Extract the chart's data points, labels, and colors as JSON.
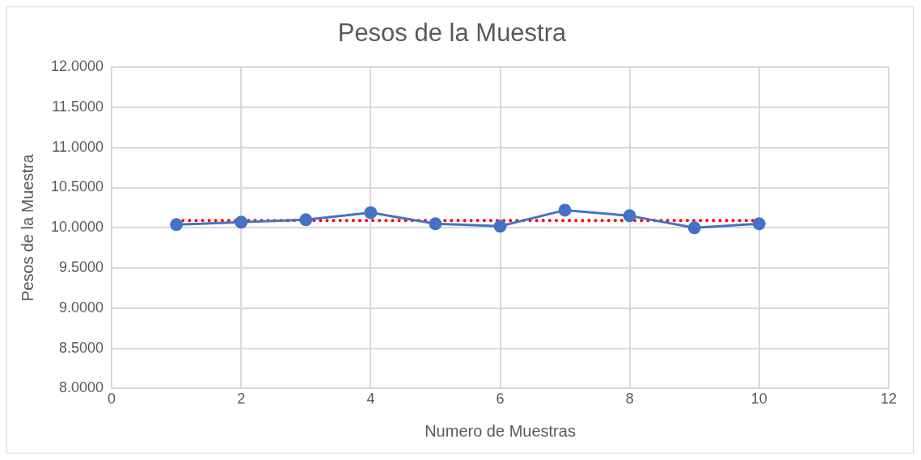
{
  "chart_data": {
    "type": "line",
    "title": "Pesos de la Muestra",
    "xlabel": "Numero de Muestras",
    "ylabel": "Pesos de la Muestra",
    "x": [
      1,
      2,
      3,
      4,
      5,
      6,
      7,
      8,
      9,
      10
    ],
    "series": [
      {
        "color": "#4472c4",
        "values": [
          10.04,
          10.07,
          10.1,
          10.19,
          10.05,
          10.02,
          10.22,
          10.15,
          10.0,
          10.05
        ],
        "marker": "circle",
        "line_style": "solid"
      },
      {
        "color": "#ff0000",
        "x": [
          1,
          10
        ],
        "values": [
          10.09,
          10.09
        ],
        "marker": "none",
        "line_style": "dotted"
      }
    ],
    "xlim": [
      0,
      12
    ],
    "xticks": [
      0,
      2,
      4,
      6,
      8,
      10,
      12
    ],
    "ylim": [
      8,
      12
    ],
    "yticks": [
      {
        "value": 8,
        "label": "8.0000"
      },
      {
        "value": 8.5,
        "label": "8.5000"
      },
      {
        "value": 9,
        "label": "9.0000"
      },
      {
        "value": 9.5,
        "label": "9.5000"
      },
      {
        "value": 10,
        "label": "10.0000"
      },
      {
        "value": 10.5,
        "label": "10.5000"
      },
      {
        "value": 11,
        "label": "11.0000"
      },
      {
        "value": 11.5,
        "label": "11.5000"
      },
      {
        "value": 12,
        "label": "12.0000"
      }
    ],
    "grid": true,
    "legend": false
  }
}
